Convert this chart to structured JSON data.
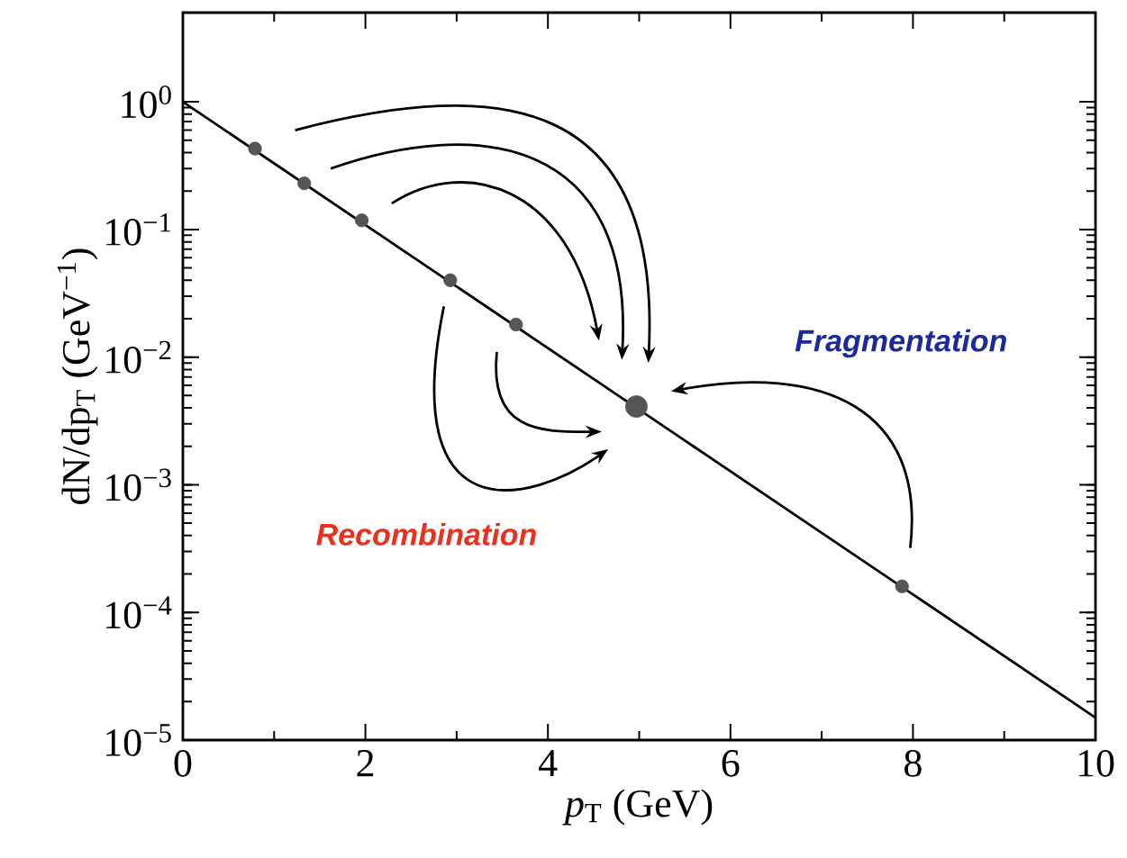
{
  "chart_data": {
    "type": "line",
    "xlabel": "*p*$_{T}$ (GeV)",
    "ylabel": "dN/dp$_{T}$ (GeV$^{−1}$)",
    "log": "y",
    "xlim": [
      0,
      10
    ],
    "ylim": [
      1e-05,
      5
    ],
    "xticks": [
      0,
      2,
      4,
      6,
      8,
      10
    ],
    "yticks": [
      {
        "value": 1e-05,
        "label": "10$^{−5}$"
      },
      {
        "value": 0.0001,
        "label": "10$^{−4}$"
      },
      {
        "value": 0.001,
        "label": "10$^{−3}$"
      },
      {
        "value": 0.01,
        "label": "10$^{−2}$"
      },
      {
        "value": 0.1,
        "label": "10$^{−1}$"
      },
      {
        "value": 1,
        "label": "10$^{0}$"
      }
    ],
    "annotations": [
      "Fragmentation",
      "Recombination"
    ],
    "series": [
      {
        "color": "#000000",
        "x": [
          0,
          10
        ],
        "values": [
          1,
          1.5e-05
        ]
      },
      {
        "type": "scatter",
        "color": "#555555",
        "x": [
          0.79,
          1.33,
          1.96,
          2.93,
          3.65,
          7.88
        ],
        "values": [
          0.43,
          0.23,
          0.118,
          0.04,
          0.018,
          0.00016
        ]
      },
      {
        "type": "scatter",
        "color": "#555555",
        "x": [
          4.97
        ],
        "values": [
          0.0041
        ]
      }
    ]
  }
}
